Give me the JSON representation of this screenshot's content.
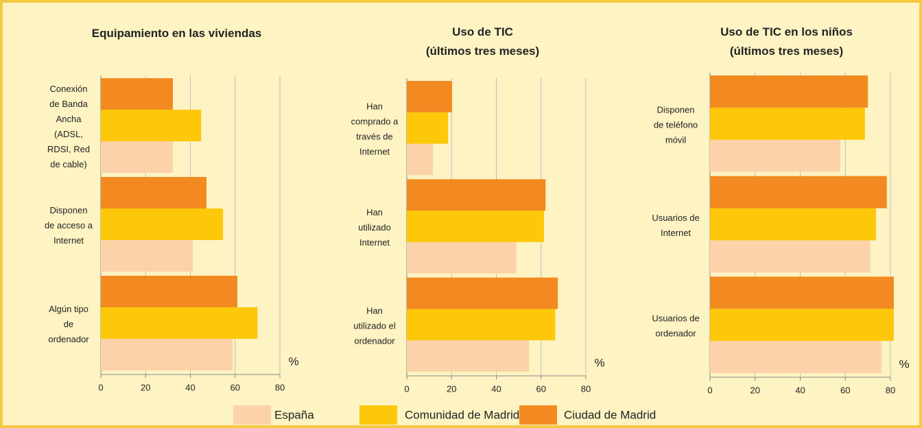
{
  "chart_data": [
    {
      "type": "barh",
      "title": "Equipamiento en las viviendas",
      "xlabel": "%",
      "categories": [
        "Conexión\nde Banda\nAncha\n(ADSL,\nRDSI, Red\nde cable)",
        "Disponen\nde acceso a\nInternet",
        "Algún tipo\nde\nordenador"
      ],
      "series": [
        {
          "values": [
            32.2,
            41.1,
            58.9
          ]
        },
        {
          "values": [
            44.8,
            54.6,
            70
          ]
        },
        {
          "values": [
            32.2,
            47.2,
            61
          ]
        }
      ],
      "xlim": [
        0,
        80
      ],
      "xticks": [
        0,
        20,
        40,
        60,
        80
      ],
      "grid": true
    },
    {
      "type": "barh",
      "title": "Uso de TIC\n(últimos tres meses)",
      "xlabel": "%",
      "categories": [
        "Han\ncomprado a\ntravés de\nInternet",
        "Han\nutilizado\nInternet",
        "Han\nutilizado el\nordenador"
      ],
      "series": [
        {
          "values": [
            11.7,
            49,
            54.6
          ]
        },
        {
          "values": [
            18.4,
            61.3,
            66.3
          ]
        },
        {
          "values": [
            20.2,
            62,
            67.5
          ]
        }
      ],
      "xlim": [
        0,
        80
      ],
      "xticks": [
        0,
        20,
        40,
        60,
        80
      ],
      "grid": true
    },
    {
      "type": "barh",
      "title": "Uso de TIC en los niños\n(últimos tres meses)",
      "xlabel": "%",
      "categories": [
        "Disponen\nde teléfono\nmóvil",
        "Usuarios de\nInternet",
        "Usuarios de\nordenador"
      ],
      "series": [
        {
          "values": [
            57.8,
            71,
            76
          ]
        },
        {
          "values": [
            68.7,
            73.6,
            81.5
          ]
        },
        {
          "values": [
            70,
            78.4,
            81.5
          ]
        }
      ],
      "xlim": [
        0,
        80
      ],
      "xticks": [
        0,
        20,
        40,
        60,
        80
      ],
      "grid": true
    }
  ],
  "legend": [
    {
      "name": "España",
      "color": "#fcd3a8"
    },
    {
      "name": "Comunidad de Madrid",
      "color": "#fdc80a"
    },
    {
      "name": "Ciudad de Madrid",
      "color": "#f28a21"
    }
  ]
}
